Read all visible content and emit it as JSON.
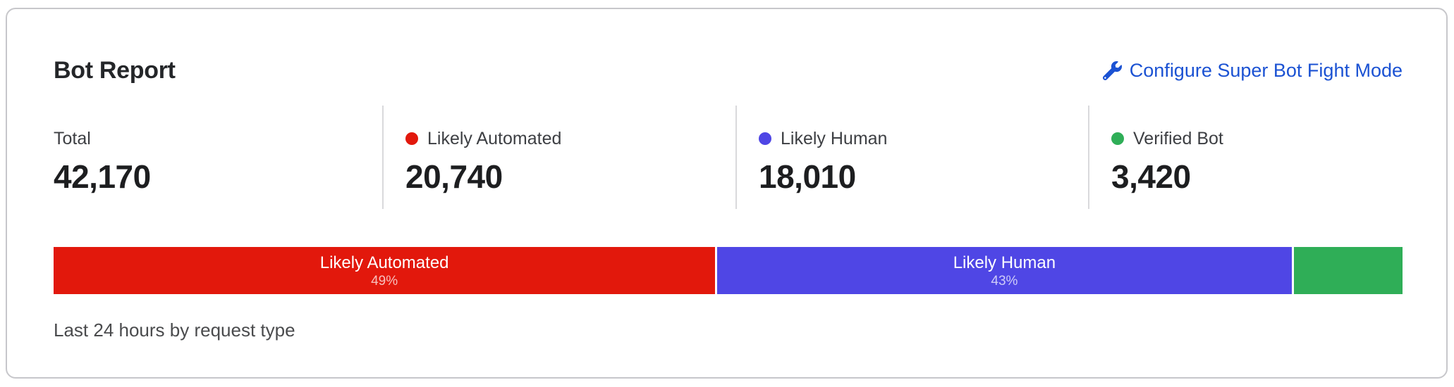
{
  "colors": {
    "automated_red": "#e2180c",
    "human_indigo": "#4f46e5",
    "verified_green": "#2fae57",
    "link_blue": "#1b52d3"
  },
  "header": {
    "title": "Bot Report",
    "configure_link_label": "Configure Super Bot Fight Mode",
    "configure_link_icon": "wrench-icon"
  },
  "stats": [
    {
      "label": "Total",
      "value": "42,170"
    },
    {
      "label": "Likely Automated",
      "value": "20,740",
      "color": "#e2180c"
    },
    {
      "label": "Likely Human",
      "value": "18,010",
      "color": "#4f46e5"
    },
    {
      "label": "Verified Bot",
      "value": "3,420",
      "color": "#2fae57"
    }
  ],
  "bar": {
    "segments": [
      {
        "label": "Likely Automated",
        "pct": "49%",
        "width_pct": 49.2,
        "color": "#e2180c"
      },
      {
        "label": "Likely Human",
        "pct": "43%",
        "width_pct": 42.7,
        "color": "#4f46e5"
      },
      {
        "label": "",
        "pct": "",
        "width_pct": 8.1,
        "color": "#2fae57"
      }
    ]
  },
  "caption": "Last 24 hours by request type",
  "chart_data": {
    "type": "bar",
    "variant": "stacked-horizontal-single-row",
    "title": "Bot Report",
    "caption": "Last 24 hours by request type",
    "categories": [
      "Likely Automated",
      "Likely Human",
      "Verified Bot"
    ],
    "values": [
      20740,
      18010,
      3420
    ],
    "percentages": [
      49,
      43,
      8
    ],
    "percent_labels_shown": [
      "49%",
      "43%",
      null
    ],
    "total": 42170,
    "total_label": "Total",
    "colors": [
      "#e2180c",
      "#4f46e5",
      "#2fae57"
    ],
    "legend_position": "top",
    "grid": false
  }
}
